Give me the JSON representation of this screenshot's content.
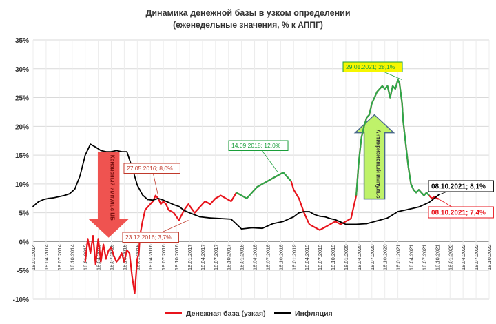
{
  "chart_data": {
    "type": "line",
    "title": "Динамика денежной базы в узком определении",
    "subtitle": "(еженедельные значения, % к АППГ)",
    "xlabel": "",
    "ylabel": "",
    "ylim": [
      -10,
      35
    ],
    "y_ticks": [
      "-10%",
      "-5%",
      "0%",
      "5%",
      "10%",
      "15%",
      "20%",
      "25%",
      "30%",
      "35%"
    ],
    "x_ticks": [
      "18.01.2014",
      "18.04.2014",
      "18.07.2014",
      "18.10.2014",
      "18.01.2015",
      "18.04.2015",
      "18.07.2015",
      "18.10.2015",
      "18.01.2016",
      "18.04.2016",
      "18.07.2016",
      "18.10.2016",
      "18.01.2017",
      "18.04.2017",
      "18.07.2017",
      "18.10.2017",
      "18.01.2018",
      "18.04.2018",
      "18.07.2018",
      "18.10.2018",
      "18.01.2019",
      "18.04.2019",
      "18.07.2019",
      "18.10.2019",
      "18.01.2020",
      "18.04.2020",
      "18.07.2020",
      "18.10.2020",
      "18.01.2021",
      "18.04.2021",
      "18.07.2021",
      "18.10.2021",
      "18.01.2022",
      "18.04.2022",
      "18.07.2022",
      "18.10.2022"
    ],
    "grid": "horizontal",
    "legend": "bottom",
    "series": [
      {
        "name": "Денежная база (узкая)",
        "color": "#e8141c",
        "x": [
          2015.0,
          2015.05,
          2015.1,
          2015.15,
          2015.2,
          2015.25,
          2015.3,
          2015.35,
          2015.4,
          2015.45,
          2015.5,
          2015.55,
          2015.6,
          2015.65,
          2015.7,
          2015.75,
          2015.8,
          2015.85,
          2015.9,
          2015.95,
          2016.0,
          2016.03,
          2016.05,
          2016.1,
          2016.15,
          2016.2,
          2016.25,
          2016.3,
          2016.35,
          2016.4,
          2016.45,
          2016.5,
          2016.55,
          2016.6,
          2016.7,
          2016.8,
          2016.9,
          2016.98,
          2017.1,
          2017.2,
          2017.3,
          2017.4,
          2017.5,
          2017.6,
          2017.7,
          2017.8,
          2017.9,
          2018.0,
          2018.1,
          2018.2,
          2018.3,
          2018.4,
          2018.5,
          2018.6,
          2018.7,
          2018.8,
          2018.9,
          2018.95,
          2019.0,
          2019.1,
          2019.2,
          2019.3,
          2019.4,
          2019.5,
          2019.6,
          2019.7,
          2019.8,
          2019.9,
          2020.0,
          2020.1,
          2020.15,
          2020.2,
          2020.25,
          2020.3,
          2020.35,
          2020.4,
          2020.45,
          2020.5,
          2020.55,
          2020.6,
          2020.65,
          2020.7,
          2020.75,
          2020.8,
          2020.85,
          2020.9,
          2020.95,
          2021.0,
          2021.03,
          2021.08,
          2021.1,
          2021.15,
          2021.2,
          2021.25,
          2021.3,
          2021.35,
          2021.4,
          2021.45,
          2021.5,
          2021.55,
          2021.6,
          2021.65,
          2021.7,
          2021.75,
          2021.78
        ],
        "values": [
          -3.5,
          0.5,
          -2.0,
          1.0,
          -4.0,
          0.5,
          -3.5,
          -0.5,
          -3.0,
          -1.5,
          -1.0,
          -2.5,
          -3.5,
          -3.0,
          -2.0,
          -3.5,
          -1.5,
          -2.0,
          -6.0,
          -9.0,
          -3.0,
          -2.0,
          1.0,
          3.5,
          5.5,
          6.0,
          6.5,
          7.0,
          8.0,
          7.5,
          6.5,
          7.0,
          6.5,
          5.5,
          5.0,
          3.7,
          5.5,
          6.5,
          5.0,
          6.0,
          7.0,
          6.5,
          7.5,
          8.0,
          7.5,
          7.0,
          8.5,
          8.0,
          7.5,
          8.5,
          9.5,
          10.0,
          10.5,
          11.0,
          11.5,
          12.0,
          11.0,
          10.5,
          9.0,
          7.5,
          5.0,
          3.0,
          2.5,
          2.0,
          2.5,
          3.0,
          3.5,
          3.0,
          3.5,
          4.0,
          6.0,
          8.0,
          14.0,
          18.0,
          20.0,
          21.5,
          22.0,
          24.0,
          25.0,
          26.0,
          26.5,
          27.0,
          26.5,
          27.0,
          25.0,
          27.0,
          26.5,
          28.1,
          27.5,
          24.0,
          21.0,
          17.0,
          13.0,
          10.0,
          9.0,
          8.5,
          9.0,
          8.5,
          8.0,
          8.5,
          8.0,
          7.5,
          7.8,
          7.5,
          7.4
        ]
      },
      {
        "name": "Инфляция",
        "color": "#000000",
        "x": [
          2014.0,
          2014.1,
          2014.2,
          2014.3,
          2014.4,
          2014.5,
          2014.6,
          2014.7,
          2014.8,
          2014.9,
          2015.0,
          2015.1,
          2015.2,
          2015.3,
          2015.4,
          2015.5,
          2015.6,
          2015.7,
          2015.8,
          2015.9,
          2016.0,
          2016.1,
          2016.2,
          2016.3,
          2016.4,
          2016.5,
          2016.6,
          2016.7,
          2016.8,
          2016.9,
          2017.0,
          2017.2,
          2017.4,
          2017.6,
          2017.8,
          2018.0,
          2018.2,
          2018.4,
          2018.6,
          2018.8,
          2019.0,
          2019.1,
          2019.2,
          2019.3,
          2019.4,
          2019.5,
          2019.6,
          2019.7,
          2019.8,
          2019.9,
          2020.0,
          2020.2,
          2020.4,
          2020.6,
          2020.8,
          2021.0,
          2021.2,
          2021.4,
          2021.6,
          2021.78
        ],
        "values": [
          6.1,
          6.9,
          7.3,
          7.5,
          7.6,
          7.8,
          8.0,
          8.3,
          9.1,
          11.4,
          15.0,
          16.9,
          16.4,
          15.8,
          15.6,
          15.6,
          15.8,
          15.6,
          15.6,
          12.9,
          9.8,
          8.1,
          7.3,
          7.2,
          7.5,
          7.2,
          6.8,
          6.4,
          6.1,
          5.4,
          5.0,
          4.3,
          4.1,
          4.0,
          3.9,
          2.2,
          2.4,
          2.3,
          3.1,
          3.5,
          4.3,
          5.0,
          5.2,
          5.2,
          4.7,
          4.4,
          4.3,
          4.0,
          3.8,
          3.4,
          3.0,
          3.0,
          3.1,
          3.6,
          4.1,
          5.2,
          5.6,
          6.0,
          6.8,
          8.1
        ]
      }
    ],
    "annotations": [
      {
        "text": "14.09.2018; 12,0%",
        "x": 2018.7,
        "y": 12.0,
        "color": "#1a9e3a"
      },
      {
        "text": "29.01.2021; 28,1%",
        "x": 2021.08,
        "y": 28.1,
        "color": "#1a9e3a"
      },
      {
        "text": "27.05.2016; 8,0%",
        "x": 2016.4,
        "y": 8.0,
        "color": "#c0392b"
      },
      {
        "text": "23.12.2016; 3,7%",
        "x": 2016.98,
        "y": 3.7,
        "color": "#c0392b"
      },
      {
        "text": "08.10.2021; 8,1%",
        "x": 2021.78,
        "y": 8.1,
        "color": "#000000"
      },
      {
        "text": "08.10.2021; 7,4%",
        "x": 2021.78,
        "y": 7.4,
        "color": "#e8141c"
      }
    ],
    "arrows": [
      {
        "text": "Кризисный импульс ЦБ",
        "direction": "down"
      },
      {
        "text": "Антикризисный импульс",
        "direction": "up"
      }
    ]
  }
}
